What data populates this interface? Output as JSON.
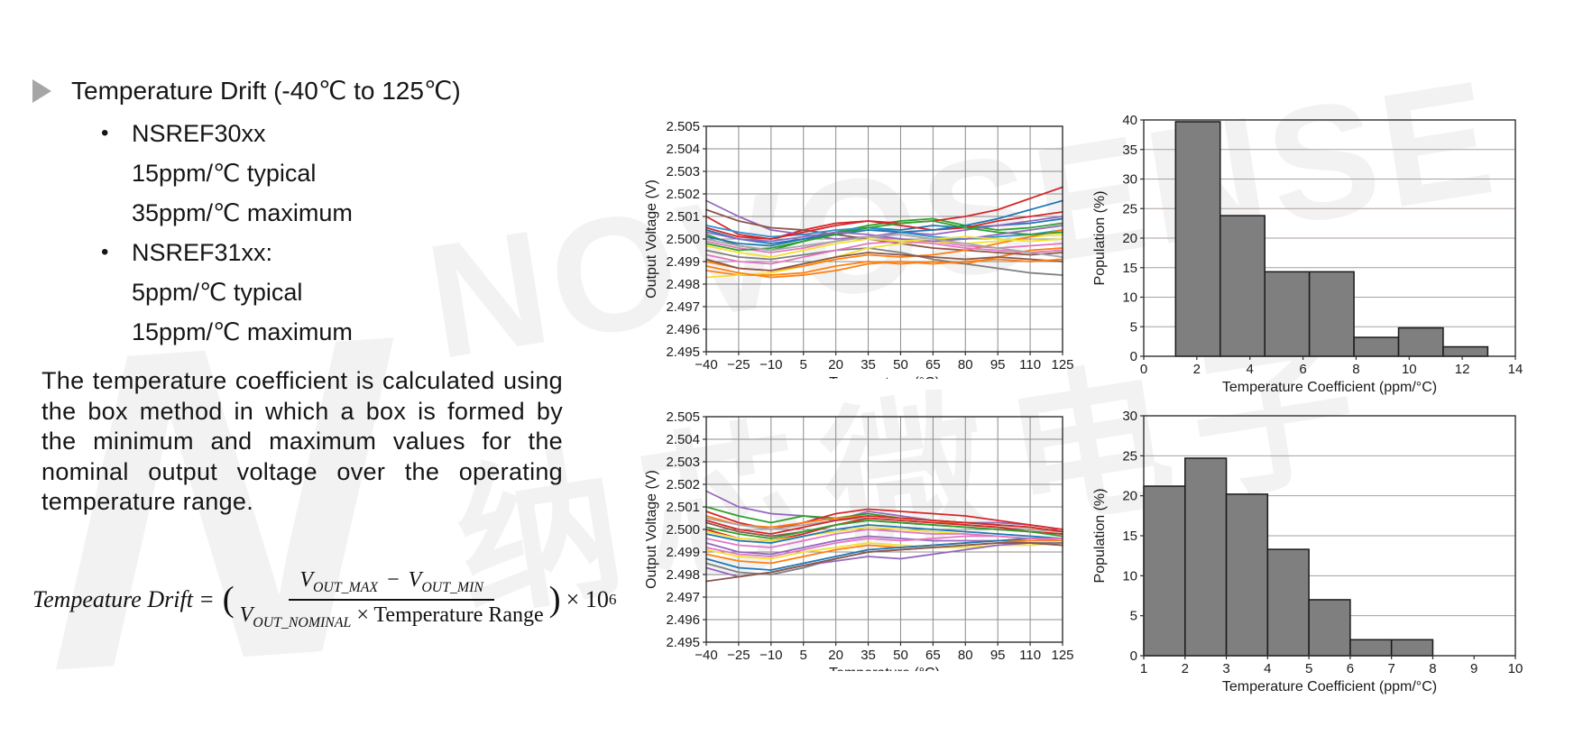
{
  "watermark": {
    "logo": "N",
    "line1": "NOVOSENSE",
    "line2": "纳芯微电子",
    "color": "#f2f2f3"
  },
  "title_block": {
    "title": "Temperature Drift (-40℃ to 125℃)",
    "items": [
      {
        "bullet": true,
        "text": "NSREF30xx"
      },
      {
        "bullet": false,
        "text": "15ppm/℃ typical"
      },
      {
        "bullet": false,
        "text": "35ppm/℃ maximum"
      },
      {
        "bullet": true,
        "text": "NSREF31xx:"
      },
      {
        "bullet": false,
        "text": "5ppm/℃ typical"
      },
      {
        "bullet": false,
        "text": "15ppm/℃ maximum"
      }
    ]
  },
  "paragraph": "The temperature coefficient is calculated using the box method in which a box is formed by the minimum and maximum values for the nominal output voltage over the operating temperature range.",
  "formula": {
    "lhs": "Tempeature Drift",
    "eq": "=",
    "open_paren": "(",
    "num_v1": "V",
    "num_s1": "OUT_MAX",
    "num_minus": "−",
    "num_v2": "V",
    "num_s2": "OUT_MIN",
    "den_v": "V",
    "den_s": "OUT_NOMINAL",
    "den_rest": "× Temperature Range",
    "close_paren": ")",
    "times_base": "× 10",
    "exp": "6"
  },
  "chart_data": [
    {
      "id": "lines-nsref30xx",
      "type": "line",
      "xlabel": "Temperature (°C)",
      "ylabel": "Output Voltage (V)",
      "xlim": [
        -40,
        125
      ],
      "ylim": [
        2.495,
        2.505
      ],
      "xticks": [
        -40,
        -25,
        -10,
        5,
        20,
        35,
        50,
        65,
        80,
        95,
        110,
        125
      ],
      "yticks": [
        2.495,
        2.496,
        2.497,
        2.498,
        2.499,
        2.5,
        2.501,
        2.502,
        2.503,
        2.504,
        2.505
      ],
      "ytick_decimals": 3,
      "grid": "both",
      "grid_color": "#8c8c8c",
      "x": [
        -40,
        -25,
        -10,
        5,
        20,
        35,
        50,
        65,
        80,
        95,
        110,
        125
      ],
      "series": [
        {
          "color": "#1f77b4",
          "values": [
            2.5004,
            2.5,
            2.4998,
            2.5,
            2.5003,
            2.5005,
            2.5004,
            2.5006,
            2.5005,
            2.5006,
            2.5007,
            2.5009
          ]
        },
        {
          "color": "#ff7f0e",
          "values": [
            2.4986,
            2.4984,
            2.4984,
            2.4985,
            2.4988,
            2.499,
            2.4989,
            2.499,
            2.4989,
            2.4992,
            2.4995,
            2.4996
          ]
        },
        {
          "color": "#2ca02c",
          "values": [
            2.5002,
            2.4997,
            2.4995,
            2.4999,
            2.5003,
            2.5006,
            2.5008,
            2.5009,
            2.5006,
            2.5004,
            2.5005,
            2.5007
          ]
        },
        {
          "color": "#d62728",
          "values": [
            2.501,
            2.5002,
            2.5,
            2.5004,
            2.5007,
            2.5008,
            2.5006,
            2.5004,
            2.5005,
            2.5008,
            2.501,
            2.5012
          ]
        },
        {
          "color": "#9467bd",
          "values": [
            2.5017,
            2.501,
            2.5004,
            2.5002,
            2.5,
            2.5001,
            2.5003,
            2.5002,
            2.5004,
            2.5006,
            2.5008,
            2.501
          ]
        },
        {
          "color": "#8c564b",
          "values": [
            2.5013,
            2.5008,
            2.5005,
            2.5004,
            2.5002,
            2.5,
            2.4998,
            2.4996,
            2.4995,
            2.4994,
            2.4993,
            2.4994
          ]
        },
        {
          "color": "#e377c2",
          "values": [
            2.4999,
            2.4996,
            2.4994,
            2.4996,
            2.4999,
            2.5001,
            2.5,
            2.4999,
            2.4997,
            2.4996,
            2.4997,
            2.4998
          ]
        },
        {
          "color": "#7f7f7f",
          "values": [
            2.4995,
            2.4992,
            2.4991,
            2.4993,
            2.4995,
            2.4996,
            2.4994,
            2.4991,
            2.4989,
            2.4987,
            2.4985,
            2.4984
          ]
        },
        {
          "color": "#f0e130",
          "values": [
            2.4983,
            2.4984,
            2.4985,
            2.4988,
            2.4992,
            2.4996,
            2.4998,
            2.4999,
            2.4998,
            2.4999,
            2.5001,
            2.5002
          ]
        },
        {
          "color": "#2a93d5",
          "values": [
            2.5006,
            2.5003,
            2.5001,
            2.5002,
            2.5004,
            2.5005,
            2.5003,
            2.5001,
            2.5,
            2.5001,
            2.5002,
            2.5004
          ]
        },
        {
          "color": "#d62728",
          "values": [
            2.5005,
            2.5001,
            2.5,
            2.5003,
            2.5006,
            2.5008,
            2.5007,
            2.5008,
            2.501,
            2.5013,
            2.5018,
            2.5023
          ]
        },
        {
          "color": "#1f77b4",
          "values": [
            2.5001,
            2.4998,
            2.4997,
            2.5,
            2.5002,
            2.5004,
            2.5003,
            2.5004,
            2.5006,
            2.5009,
            2.5013,
            2.5017
          ]
        },
        {
          "color": "#ff7f0e",
          "values": [
            2.499,
            2.4987,
            2.4986,
            2.4988,
            2.4991,
            2.4993,
            2.4992,
            2.4993,
            2.4995,
            2.4998,
            2.5001,
            2.5004
          ]
        },
        {
          "color": "#2ca02c",
          "values": [
            2.4998,
            2.4995,
            2.4996,
            2.4999,
            2.5002,
            2.5005,
            2.5007,
            2.5008,
            2.5005,
            2.5003,
            2.5002,
            2.5003
          ]
        },
        {
          "color": "#9467bd",
          "values": [
            2.5003,
            2.5,
            2.4999,
            2.5001,
            2.5003,
            2.5002,
            2.5,
            2.4999,
            2.5,
            2.5002,
            2.5004,
            2.5006
          ]
        },
        {
          "color": "#8c564b",
          "values": [
            2.4991,
            2.4987,
            2.4986,
            2.4989,
            2.4992,
            2.4994,
            2.4993,
            2.4992,
            2.4991,
            2.4992,
            2.4991,
            2.499
          ]
        },
        {
          "color": "#e377c2",
          "values": [
            2.4993,
            2.499,
            2.4989,
            2.4992,
            2.4995,
            2.4998,
            2.4999,
            2.4998,
            2.4996,
            2.4995,
            2.4994,
            2.4995
          ]
        },
        {
          "color": "#f0e130",
          "values": [
            2.4997,
            2.4994,
            2.4992,
            2.4995,
            2.4998,
            2.5,
            2.4999,
            2.5,
            2.5001,
            2.5,
            2.4999,
            2.5
          ]
        },
        {
          "color": "#a6a6a6",
          "values": [
            2.5,
            2.4997,
            2.4995,
            2.4997,
            2.4999,
            2.5001,
            2.5002,
            2.5,
            2.4998,
            2.4996,
            2.4994,
            2.4992
          ]
        },
        {
          "color": "#ff7f0e",
          "values": [
            2.4988,
            2.4985,
            2.4983,
            2.4984,
            2.4986,
            2.4989,
            2.499,
            2.4989,
            2.499,
            2.4991,
            2.499,
            2.4991
          ]
        }
      ]
    },
    {
      "id": "hist-nsref30xx",
      "type": "bar",
      "xlabel": "Temperature Coefficient (ppm/°C)",
      "ylabel": "Population (%)",
      "xlim": [
        0,
        14
      ],
      "ylim": [
        0,
        40
      ],
      "xticks": [
        0,
        2,
        4,
        6,
        8,
        10,
        12,
        14
      ],
      "yticks": [
        0,
        5,
        10,
        15,
        20,
        25,
        30,
        35,
        40
      ],
      "grid": "y",
      "grid_color": "#ab9f9a",
      "bin_edges": [
        1.2,
        2.88,
        4.56,
        6.24,
        7.92,
        9.6,
        11.28,
        12.96
      ],
      "values": [
        39.7,
        23.8,
        14.3,
        14.3,
        3.2,
        4.8,
        1.6
      ],
      "bar_color": "#7f7f7f",
      "bar_edge": "#1a1a1a"
    },
    {
      "id": "lines-nsref31xx",
      "type": "line",
      "xlabel": "Temperature (°C)",
      "ylabel": "Output Voltage (V)",
      "xlim": [
        -40,
        125
      ],
      "ylim": [
        2.495,
        2.505
      ],
      "xticks": [
        -40,
        -25,
        -10,
        5,
        20,
        35,
        50,
        65,
        80,
        95,
        110,
        125
      ],
      "yticks": [
        2.495,
        2.496,
        2.497,
        2.498,
        2.499,
        2.5,
        2.501,
        2.502,
        2.503,
        2.504,
        2.505
      ],
      "ytick_decimals": 3,
      "grid": "both",
      "grid_color": "#8c8c8c",
      "x": [
        -40,
        -25,
        -10,
        5,
        20,
        35,
        50,
        65,
        80,
        95,
        110,
        125
      ],
      "series": [
        {
          "color": "#9467bd",
          "values": [
            2.5017,
            2.501,
            2.5007,
            2.5006,
            2.5004,
            2.5008,
            2.5006,
            2.5004,
            2.5003,
            2.5003,
            2.5002,
            2.5
          ]
        },
        {
          "color": "#2ca02c",
          "values": [
            2.501,
            2.5006,
            2.5003,
            2.5006,
            2.5005,
            2.5007,
            2.5005,
            2.5004,
            2.5003,
            2.5002,
            2.5001,
            2.4999
          ]
        },
        {
          "color": "#d62728",
          "values": [
            2.5008,
            2.5003,
            2.5,
            2.5003,
            2.5007,
            2.5009,
            2.5008,
            2.5007,
            2.5006,
            2.5004,
            2.5002,
            2.5
          ]
        },
        {
          "color": "#ff7f0e",
          "values": [
            2.5006,
            2.5002,
            2.5001,
            2.5003,
            2.5005,
            2.5006,
            2.5005,
            2.5004,
            2.5002,
            2.5001,
            2.5,
            2.4999
          ]
        },
        {
          "color": "#a6a6a6",
          "values": [
            2.5005,
            2.5002,
            2.5,
            2.5002,
            2.5004,
            2.5005,
            2.5004,
            2.5003,
            2.5002,
            2.5001,
            2.5,
            2.4999
          ]
        },
        {
          "color": "#8c564b",
          "values": [
            2.5003,
            2.4999,
            2.4997,
            2.4999,
            2.5002,
            2.5004,
            2.5003,
            2.5002,
            2.5001,
            2.5,
            2.4999,
            2.4998
          ]
        },
        {
          "color": "#d62728",
          "values": [
            2.5,
            2.4996,
            2.4995,
            2.4998,
            2.5002,
            2.5005,
            2.5004,
            2.5003,
            2.5002,
            2.5001,
            2.4999,
            2.4998
          ]
        },
        {
          "color": "#f0e130",
          "values": [
            2.4999,
            2.4996,
            2.4995,
            2.4997,
            2.4999,
            2.5001,
            2.5,
            2.4999,
            2.4998,
            2.4997,
            2.4996,
            2.4996
          ]
        },
        {
          "color": "#1f77b4",
          "values": [
            2.4998,
            2.4995,
            2.4994,
            2.4997,
            2.5,
            2.5002,
            2.5001,
            2.5,
            2.4999,
            2.4998,
            2.4997,
            2.4996
          ]
        },
        {
          "color": "#e377c2",
          "values": [
            2.4996,
            2.4993,
            2.4992,
            2.4995,
            2.4998,
            2.5,
            2.4999,
            2.4998,
            2.4998,
            2.4997,
            2.4996,
            2.4995
          ]
        },
        {
          "color": "#9467bd",
          "values": [
            2.4994,
            2.499,
            2.4989,
            2.4992,
            2.4995,
            2.4997,
            2.4996,
            2.4995,
            2.4995,
            2.4995,
            2.4994,
            2.4994
          ]
        },
        {
          "color": "#f0e130",
          "values": [
            2.4991,
            2.4988,
            2.4987,
            2.499,
            2.4992,
            2.4994,
            2.4993,
            2.4992,
            2.4992,
            2.4993,
            2.4993,
            2.4994
          ]
        },
        {
          "color": "#ff7f0e",
          "values": [
            2.4989,
            2.4986,
            2.4985,
            2.4988,
            2.4991,
            2.4993,
            2.4992,
            2.4993,
            2.4994,
            2.4995,
            2.4995,
            2.4995
          ]
        },
        {
          "color": "#1f77b4",
          "values": [
            2.4987,
            2.4983,
            2.4982,
            2.4985,
            2.4988,
            2.4991,
            2.4992,
            2.4993,
            2.4994,
            2.4995,
            2.4996,
            2.4996
          ]
        },
        {
          "color": "#7f7f7f",
          "values": [
            2.4985,
            2.4981,
            2.498,
            2.4983,
            2.4987,
            2.499,
            2.4991,
            2.4992,
            2.4993,
            2.4994,
            2.4994,
            2.4994
          ]
        },
        {
          "color": "#9467bd",
          "values": [
            2.4983,
            2.4979,
            2.4981,
            2.4984,
            2.4986,
            2.4988,
            2.4987,
            2.4989,
            2.4991,
            2.4993,
            2.4994,
            2.4993
          ]
        },
        {
          "color": "#8c564b",
          "values": [
            2.4977,
            2.4979,
            2.4981,
            2.4984,
            2.4987,
            2.499,
            2.4991,
            2.4992,
            2.4993,
            2.4994,
            2.4994,
            2.4993
          ]
        },
        {
          "color": "#2ca02c",
          "values": [
            2.5001,
            2.4998,
            2.4996,
            2.4999,
            2.5002,
            2.5004,
            2.5003,
            2.5002,
            2.5001,
            2.5,
            2.4999,
            2.4997
          ]
        },
        {
          "color": "#e377c2",
          "values": [
            2.4992,
            2.4989,
            2.4988,
            2.4991,
            2.4994,
            2.4996,
            2.4995,
            2.4996,
            2.4997,
            2.4997,
            2.4996,
            2.4996
          ]
        },
        {
          "color": "#d62728",
          "values": [
            2.5004,
            2.5,
            2.4998,
            2.5001,
            2.5004,
            2.5006,
            2.5005,
            2.5004,
            2.5003,
            2.5002,
            2.5001,
            2.4999
          ]
        }
      ]
    },
    {
      "id": "hist-nsref31xx",
      "type": "bar",
      "xlabel": "Temperature Coefficient (ppm/°C)",
      "ylabel": "Population (%)",
      "xlim": [
        1,
        10
      ],
      "ylim": [
        0,
        30
      ],
      "xticks": [
        1,
        2,
        3,
        4,
        5,
        6,
        7,
        8,
        9,
        10
      ],
      "yticks": [
        0,
        5,
        10,
        15,
        20,
        25,
        30
      ],
      "grid": "y",
      "grid_color": "#ab9f9a",
      "bin_edges": [
        1,
        2,
        3,
        4,
        5,
        6,
        7,
        8
      ],
      "values": [
        21.2,
        24.7,
        20.2,
        13.3,
        7.0,
        2.0,
        2.0
      ],
      "bar_color": "#7f7f7f",
      "bar_edge": "#1a1a1a"
    }
  ]
}
